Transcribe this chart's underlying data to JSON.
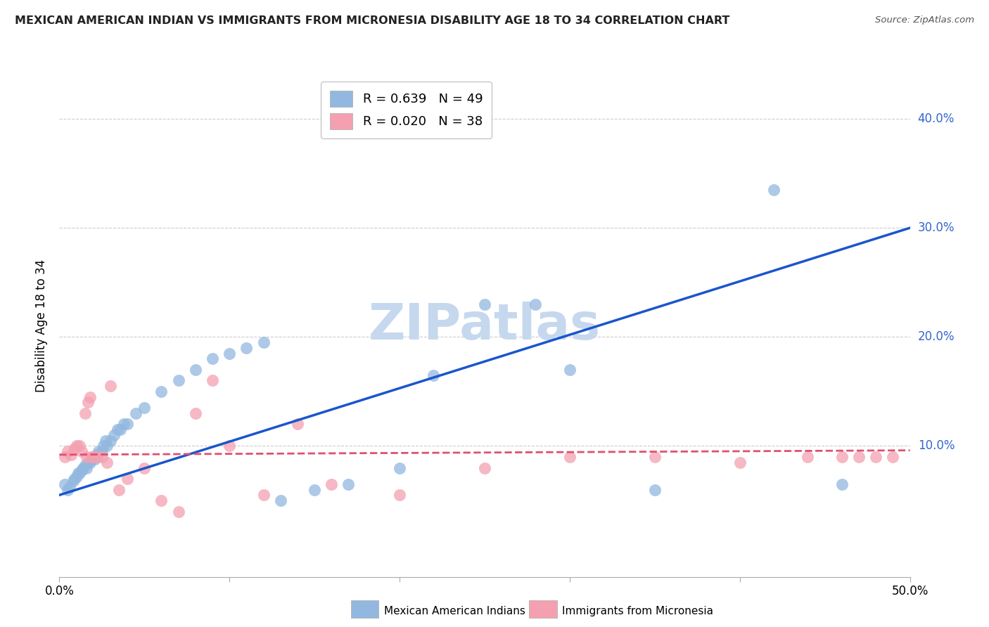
{
  "title": "MEXICAN AMERICAN INDIAN VS IMMIGRANTS FROM MICRONESIA DISABILITY AGE 18 TO 34 CORRELATION CHART",
  "source": "Source: ZipAtlas.com",
  "ylabel": "Disability Age 18 to 34",
  "xlim": [
    0.0,
    0.5
  ],
  "ylim": [
    -0.02,
    0.44
  ],
  "yticks": [
    0.1,
    0.2,
    0.3,
    0.4
  ],
  "ytick_labels": [
    "10.0%",
    "20.0%",
    "30.0%",
    "40.0%"
  ],
  "xticks": [
    0.0,
    0.1,
    0.2,
    0.3,
    0.4,
    0.5
  ],
  "xtick_labels": [
    "0.0%",
    "",
    "",
    "",
    "",
    "50.0%"
  ],
  "legend1_label": "R = 0.639   N = 49",
  "legend2_label": "R = 0.020   N = 38",
  "legend1_color": "#92b8e0",
  "legend2_color": "#f4a0b0",
  "trendline1_color": "#1a56cc",
  "trendline2_color": "#e05070",
  "watermark_color": "#c5d8ee",
  "grid_color": "#cccccc",
  "ytick_color": "#3366cc",
  "blue_x": [
    0.003,
    0.005,
    0.006,
    0.008,
    0.009,
    0.01,
    0.011,
    0.012,
    0.013,
    0.014,
    0.015,
    0.016,
    0.017,
    0.018,
    0.019,
    0.02,
    0.021,
    0.022,
    0.023,
    0.025,
    0.026,
    0.027,
    0.028,
    0.03,
    0.032,
    0.034,
    0.036,
    0.038,
    0.04,
    0.045,
    0.05,
    0.06,
    0.07,
    0.08,
    0.09,
    0.1,
    0.11,
    0.12,
    0.13,
    0.15,
    0.17,
    0.2,
    0.22,
    0.25,
    0.28,
    0.3,
    0.35,
    0.42,
    0.46
  ],
  "blue_y": [
    0.065,
    0.06,
    0.062,
    0.068,
    0.07,
    0.072,
    0.075,
    0.075,
    0.078,
    0.08,
    0.082,
    0.08,
    0.085,
    0.085,
    0.088,
    0.09,
    0.088,
    0.092,
    0.095,
    0.095,
    0.1,
    0.105,
    0.1,
    0.105,
    0.11,
    0.115,
    0.115,
    0.12,
    0.12,
    0.13,
    0.135,
    0.15,
    0.16,
    0.17,
    0.18,
    0.185,
    0.19,
    0.195,
    0.05,
    0.06,
    0.065,
    0.08,
    0.165,
    0.23,
    0.23,
    0.17,
    0.06,
    0.335,
    0.065
  ],
  "pink_x": [
    0.003,
    0.005,
    0.007,
    0.009,
    0.01,
    0.012,
    0.013,
    0.015,
    0.016,
    0.017,
    0.018,
    0.019,
    0.02,
    0.022,
    0.025,
    0.028,
    0.03,
    0.035,
    0.04,
    0.05,
    0.06,
    0.07,
    0.08,
    0.09,
    0.1,
    0.12,
    0.14,
    0.16,
    0.2,
    0.25,
    0.3,
    0.35,
    0.4,
    0.44,
    0.46,
    0.47,
    0.48,
    0.49
  ],
  "pink_y": [
    0.09,
    0.095,
    0.092,
    0.098,
    0.1,
    0.1,
    0.095,
    0.13,
    0.09,
    0.14,
    0.145,
    0.09,
    0.09,
    0.09,
    0.09,
    0.085,
    0.155,
    0.06,
    0.07,
    0.08,
    0.05,
    0.04,
    0.13,
    0.16,
    0.1,
    0.055,
    0.12,
    0.065,
    0.055,
    0.08,
    0.09,
    0.09,
    0.085,
    0.09,
    0.09,
    0.09,
    0.09,
    0.09
  ],
  "trendline1_x": [
    0.0,
    0.5
  ],
  "trendline1_y": [
    0.055,
    0.3
  ],
  "trendline2_x": [
    0.0,
    0.5
  ],
  "trendline2_y": [
    0.092,
    0.096
  ]
}
